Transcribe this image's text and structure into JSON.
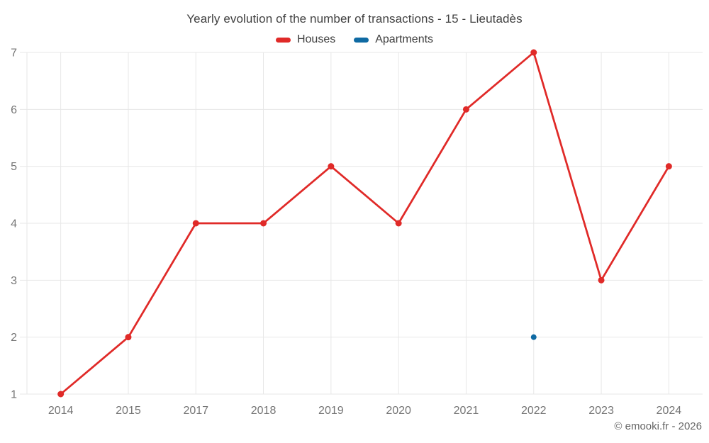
{
  "chart_data": {
    "type": "line",
    "title": "Yearly evolution of the number of transactions - 15 - Lieutadès",
    "categories": [
      "2014",
      "2015",
      "2017",
      "2018",
      "2019",
      "2020",
      "2021",
      "2022",
      "2023",
      "2024"
    ],
    "series": [
      {
        "name": "Houses",
        "color": "#e02a28",
        "marker_radius": 4.5,
        "line_width": 2.75,
        "values": [
          1,
          2,
          4,
          4,
          5,
          4,
          6,
          7,
          3,
          5
        ]
      },
      {
        "name": "Apartments",
        "color": "#0f6aa3",
        "marker_radius": 4,
        "line_width": 2.75,
        "values": [
          null,
          null,
          null,
          null,
          null,
          null,
          null,
          2,
          null,
          null
        ]
      }
    ],
    "xlabel": "",
    "ylabel": "",
    "ylim": [
      1,
      7
    ],
    "yticks": [
      1,
      2,
      3,
      4,
      5,
      6,
      7
    ],
    "grid": true,
    "legend_position": "top"
  },
  "footer": {
    "text": "© emooki.fr - 2026"
  },
  "colors": {
    "grid": "#e7e7e7",
    "axis_label": "#757575",
    "title": "#404040",
    "footer": "#666666",
    "background": "#ffffff"
  }
}
